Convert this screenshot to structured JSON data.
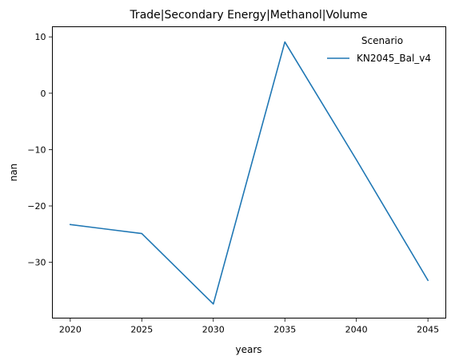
{
  "chart_data": {
    "type": "line",
    "title": "Trade|Secondary Energy|Methanol|Volume",
    "xlabel": "years",
    "ylabel": "nan",
    "x": [
      2020,
      2025,
      2030,
      2035,
      2040,
      2045
    ],
    "xlim": [
      2018.75,
      2046.25
    ],
    "ylim": [
      -39.9,
      11.8
    ],
    "xticks": [
      "2020",
      "2025",
      "2030",
      "2035",
      "2040",
      "2045"
    ],
    "yticks": [
      {
        "value": 10,
        "label": "10"
      },
      {
        "value": 0,
        "label": "0"
      },
      {
        "value": -10,
        "label": "−10"
      },
      {
        "value": -20,
        "label": "−20"
      },
      {
        "value": -30,
        "label": "−30"
      }
    ],
    "grid": false,
    "legend": {
      "title": "Scenario",
      "placement": "top-right"
    },
    "series": [
      {
        "name": "KN2045_Bal_v4",
        "color": "#1f77b4",
        "values": [
          -23.3,
          -24.9,
          -37.4,
          9.1,
          -11.8,
          -33.2
        ]
      }
    ]
  }
}
